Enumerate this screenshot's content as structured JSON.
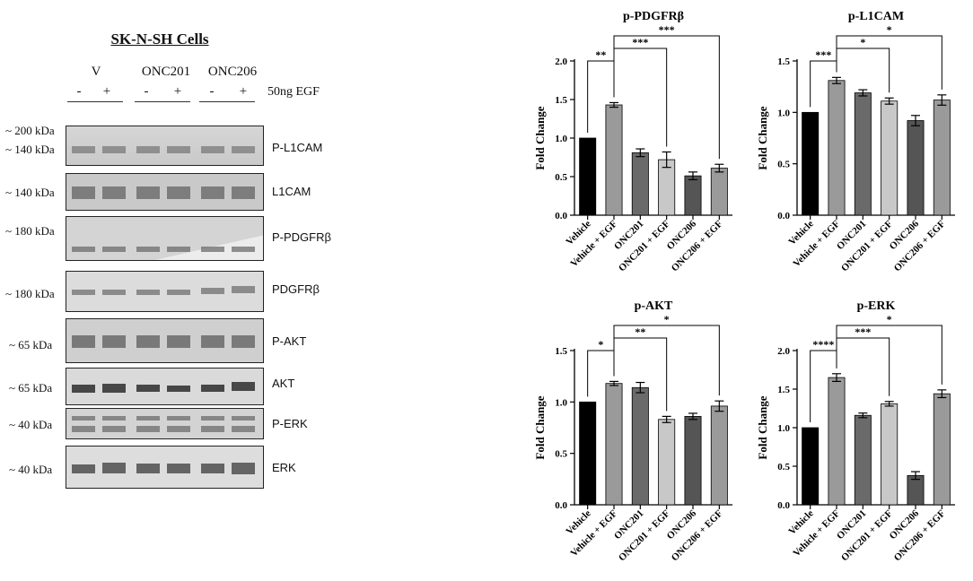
{
  "blot": {
    "title": "SK-N-SH Cells",
    "groups": [
      "V",
      "ONC201",
      "ONC206"
    ],
    "lane_signs": [
      "-",
      "+",
      "-",
      "+",
      "-",
      "+"
    ],
    "egf_label": "50ng EGF",
    "kda": {
      "k200": "~ 200 kDa",
      "k140a": "~ 140 kDa",
      "k140b": "~ 140 kDa",
      "k180a": "~ 180 kDa",
      "k180b": "~ 180 kDa",
      "k65a": "~ 65 kDa",
      "k65b": "~ 65 kDa",
      "k40a": "~ 40 kDa",
      "k40b": "~ 40 kDa"
    },
    "band_labels": [
      "P-L1CAM",
      "L1CAM",
      "P-PDGFRβ",
      "PDGFRβ",
      "P-AKT",
      "AKT",
      "P-ERK",
      "ERK"
    ]
  },
  "chart_data": [
    {
      "type": "bar",
      "title": "p-PDGFRβ",
      "ylabel": "Fold Change",
      "categories": [
        "Vehicle",
        "Vehicle + EGF",
        "ONC201",
        "ONC201 + EGF",
        "ONC206",
        "ONC206 + EGF"
      ],
      "values": [
        1.0,
        1.43,
        0.81,
        0.72,
        0.51,
        0.61
      ],
      "errors": [
        0,
        0.03,
        0.05,
        0.1,
        0.05,
        0.05
      ],
      "ylim": [
        0,
        2.0
      ],
      "yticks": [
        "0.0",
        "0.5",
        "1.0",
        "1.5",
        "2.0"
      ],
      "colors": [
        "#000000",
        "#9a9a9a",
        "#6a6a6a",
        "#c8c8c8",
        "#555555",
        "#9a9a9a"
      ],
      "significance": [
        {
          "from": "Vehicle",
          "to": "Vehicle + EGF",
          "label": "**"
        },
        {
          "from": "Vehicle + EGF",
          "to": "ONC201 + EGF",
          "label": "***"
        },
        {
          "from": "Vehicle + EGF",
          "to": "ONC206 + EGF",
          "label": "***"
        }
      ]
    },
    {
      "type": "bar",
      "title": "p-L1CAM",
      "ylabel": "Fold Change",
      "categories": [
        "Vehicle",
        "Vehicle + EGF",
        "ONC201",
        "ONC201 + EGF",
        "ONC206",
        "ONC206 + EGF"
      ],
      "values": [
        1.0,
        1.31,
        1.19,
        1.11,
        0.92,
        1.12
      ],
      "errors": [
        0,
        0.03,
        0.03,
        0.03,
        0.05,
        0.05
      ],
      "ylim": [
        0,
        1.5
      ],
      "yticks": [
        "0.0",
        "0.5",
        "1.0",
        "1.5"
      ],
      "colors": [
        "#000000",
        "#9a9a9a",
        "#6a6a6a",
        "#c8c8c8",
        "#555555",
        "#9a9a9a"
      ],
      "significance": [
        {
          "from": "Vehicle",
          "to": "Vehicle + EGF",
          "label": "***"
        },
        {
          "from": "Vehicle + EGF",
          "to": "ONC201 + EGF",
          "label": "*"
        },
        {
          "from": "Vehicle + EGF",
          "to": "ONC206 + EGF",
          "label": "*"
        }
      ]
    },
    {
      "type": "bar",
      "title": "p-AKT",
      "ylabel": "Fold Change",
      "categories": [
        "Vehicle",
        "Vehicle + EGF",
        "ONC201",
        "ONC201 + EGF",
        "ONC206",
        "ONC206 + EGF"
      ],
      "values": [
        1.0,
        1.18,
        1.14,
        0.83,
        0.86,
        0.96
      ],
      "errors": [
        0,
        0.02,
        0.05,
        0.03,
        0.03,
        0.05
      ],
      "ylim": [
        0,
        1.5
      ],
      "yticks": [
        "0.0",
        "0.5",
        "1.0",
        "1.5"
      ],
      "colors": [
        "#000000",
        "#9a9a9a",
        "#6a6a6a",
        "#c8c8c8",
        "#555555",
        "#9a9a9a"
      ],
      "significance": [
        {
          "from": "Vehicle",
          "to": "Vehicle + EGF",
          "label": "*"
        },
        {
          "from": "Vehicle + EGF",
          "to": "ONC201 + EGF",
          "label": "**"
        },
        {
          "from": "Vehicle + EGF",
          "to": "ONC206 + EGF",
          "label": "*"
        }
      ]
    },
    {
      "type": "bar",
      "title": "p-ERK",
      "ylabel": "Fold Change",
      "categories": [
        "Vehicle",
        "Vehicle + EGF",
        "ONC201",
        "ONC201 + EGF",
        "ONC206",
        "ONC206 + EGF"
      ],
      "values": [
        1.0,
        1.65,
        1.16,
        1.31,
        0.38,
        1.44
      ],
      "errors": [
        0,
        0.05,
        0.03,
        0.03,
        0.05,
        0.05
      ],
      "ylim": [
        0,
        2.0
      ],
      "yticks": [
        "0.0",
        "0.5",
        "1.0",
        "1.5",
        "2.0"
      ],
      "colors": [
        "#000000",
        "#9a9a9a",
        "#6a6a6a",
        "#c8c8c8",
        "#555555",
        "#9a9a9a"
      ],
      "significance": [
        {
          "from": "Vehicle",
          "to": "Vehicle + EGF",
          "label": "****"
        },
        {
          "from": "Vehicle + EGF",
          "to": "ONC201 + EGF",
          "label": "***"
        },
        {
          "from": "Vehicle + EGF",
          "to": "ONC206 + EGF",
          "label": "*"
        }
      ]
    }
  ]
}
